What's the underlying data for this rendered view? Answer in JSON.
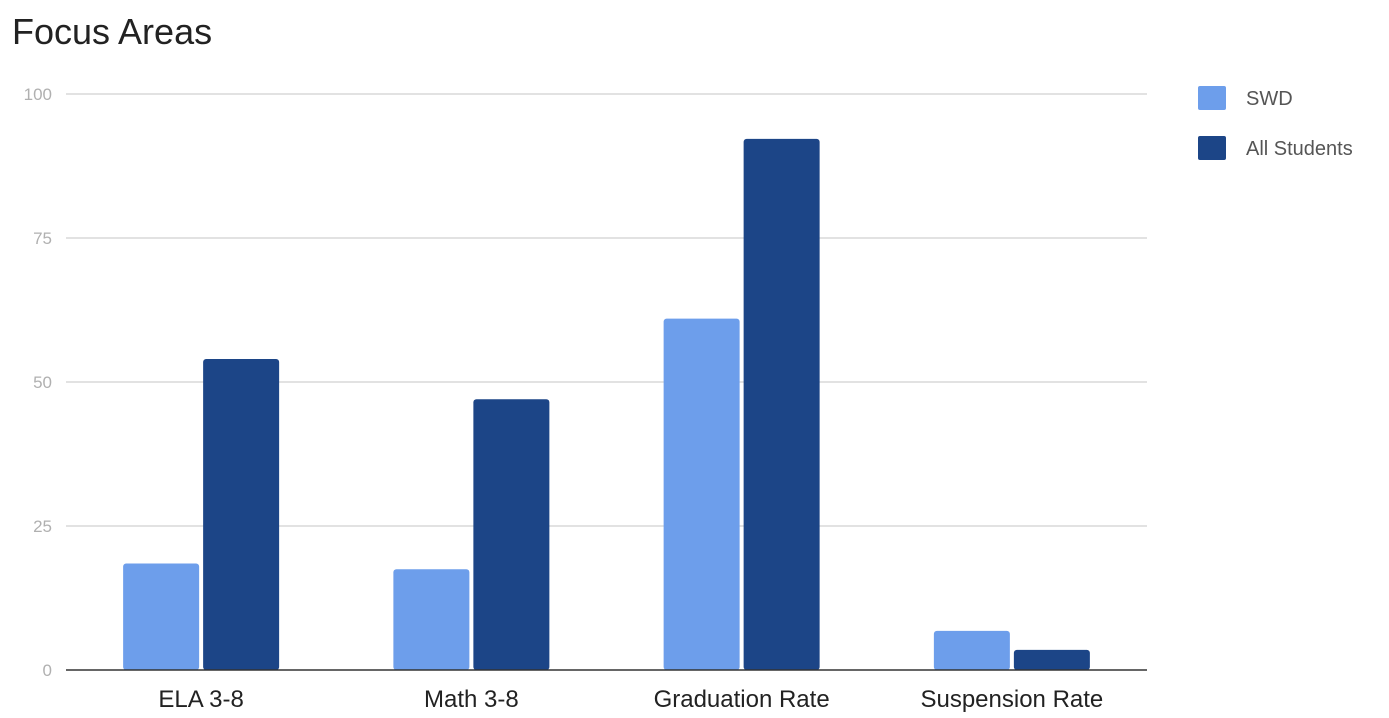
{
  "chart_data": {
    "type": "bar",
    "title": "Focus Areas",
    "xlabel": "",
    "ylabel": "",
    "categories": [
      "ELA 3-8",
      "Math 3-8",
      "Graduation Rate",
      "Suspension Rate"
    ],
    "series": [
      {
        "name": "SWD",
        "values": [
          18.5,
          17.5,
          61,
          6.8
        ],
        "color": "#6d9eeb"
      },
      {
        "name": "All Students",
        "values": [
          54,
          47,
          92.2,
          3.5
        ],
        "color": "#1c4587"
      }
    ],
    "ylim": [
      0,
      100
    ],
    "yticks": [
      "0",
      "25",
      "50",
      "75",
      "100"
    ],
    "grid": true,
    "legend_position": "right"
  }
}
